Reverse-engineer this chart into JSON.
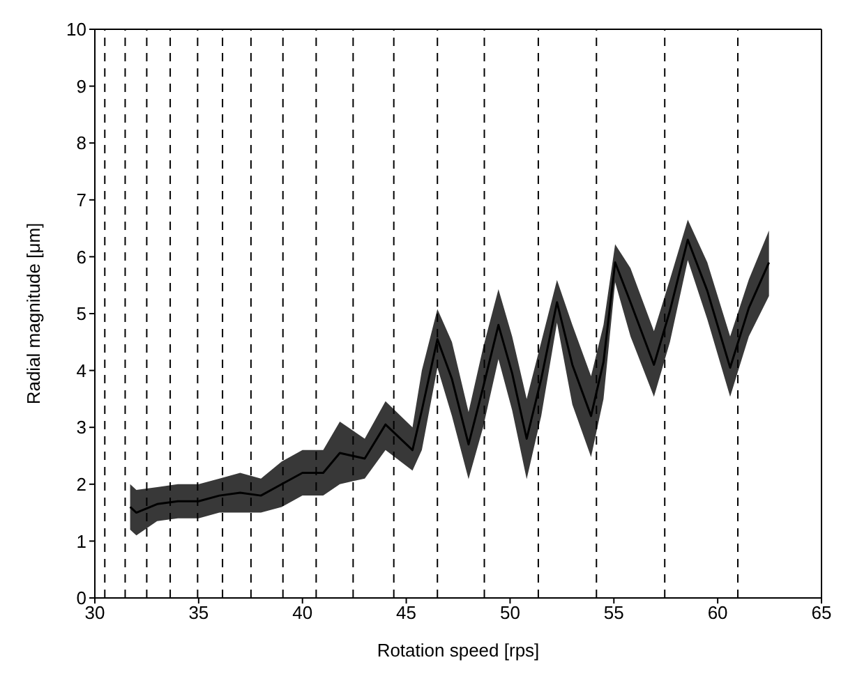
{
  "chart_data": {
    "type": "line",
    "xlabel": "Rotation speed [rps]",
    "ylabel": "Radial magnitude [μm]",
    "xlim": [
      30,
      65
    ],
    "xticks": [
      30,
      35,
      40,
      45,
      50,
      55,
      60,
      65
    ],
    "ylim": [
      0,
      10
    ],
    "yticks": [
      0,
      1,
      2,
      3,
      4,
      5,
      6,
      7,
      8,
      9,
      10
    ],
    "x": [
      31.7,
      32.0,
      33,
      34,
      35,
      36,
      37,
      38,
      39,
      40,
      41,
      41.8,
      43,
      44,
      45.3,
      45.75,
      46.5,
      47.2,
      48.0,
      48.7,
      49.44,
      50.1,
      50.8,
      51.5,
      52.26,
      53.0,
      53.9,
      54.5,
      55.06,
      55.8,
      56.93,
      57.7,
      58.56,
      59.5,
      60.6,
      61.5,
      62.47
    ],
    "series": [
      {
        "color": "#000000",
        "values": [
          1.6,
          1.5,
          1.65,
          1.7,
          1.7,
          1.8,
          1.85,
          1.8,
          2.0,
          2.2,
          2.2,
          2.55,
          2.45,
          3.05,
          2.6,
          3.3,
          4.55,
          3.85,
          2.7,
          3.7,
          4.8,
          3.95,
          2.8,
          3.85,
          5.2,
          4.1,
          3.2,
          4.15,
          5.9,
          5.2,
          4.1,
          5.05,
          6.3,
          5.4,
          4.05,
          5.1,
          5.9
        ],
        "lower": [
          1.2,
          1.1,
          1.35,
          1.4,
          1.4,
          1.5,
          1.5,
          1.5,
          1.6,
          1.8,
          1.8,
          2.0,
          2.1,
          2.6,
          2.24,
          2.6,
          4.05,
          3.2,
          2.09,
          3.0,
          4.2,
          3.3,
          2.09,
          3.2,
          4.84,
          3.4,
          2.48,
          3.5,
          5.55,
          4.6,
          3.54,
          4.5,
          5.94,
          4.9,
          3.54,
          4.6,
          5.31
        ],
        "upper": [
          2.0,
          1.9,
          1.95,
          2.0,
          2.0,
          2.1,
          2.2,
          2.1,
          2.4,
          2.6,
          2.6,
          3.1,
          2.8,
          3.46,
          3.0,
          4.0,
          5.08,
          4.5,
          3.27,
          4.4,
          5.43,
          4.6,
          3.5,
          4.5,
          5.59,
          4.8,
          3.9,
          4.8,
          6.22,
          5.8,
          4.69,
          5.6,
          6.65,
          5.9,
          4.6,
          5.6,
          6.46
        ]
      }
    ],
    "ref_lines": [
      {
        "axis": "x",
        "value": 30.48,
        "color": "#000000",
        "line_style": "dashed"
      },
      {
        "axis": "x",
        "value": 31.46,
        "color": "#000000",
        "line_style": "dashed"
      },
      {
        "axis": "x",
        "value": 32.5,
        "color": "#000000",
        "line_style": "dashed"
      },
      {
        "axis": "x",
        "value": 33.63,
        "color": "#000000",
        "line_style": "dashed"
      },
      {
        "axis": "x",
        "value": 34.95,
        "color": "#000000",
        "line_style": "dashed"
      },
      {
        "axis": "x",
        "value": 36.15,
        "color": "#000000",
        "line_style": "dashed"
      },
      {
        "axis": "x",
        "value": 37.52,
        "color": "#000000",
        "line_style": "dashed"
      },
      {
        "axis": "x",
        "value": 39.06,
        "color": "#000000",
        "line_style": "dashed"
      },
      {
        "axis": "x",
        "value": 40.66,
        "color": "#000000",
        "line_style": "dashed"
      },
      {
        "axis": "x",
        "value": 42.44,
        "color": "#000000",
        "line_style": "dashed"
      },
      {
        "axis": "x",
        "value": 44.4,
        "color": "#000000",
        "line_style": "dashed"
      },
      {
        "axis": "x",
        "value": 46.5,
        "color": "#000000",
        "line_style": "dashed"
      },
      {
        "axis": "x",
        "value": 48.76,
        "color": "#000000",
        "line_style": "dashed"
      },
      {
        "axis": "x",
        "value": 51.36,
        "color": "#000000",
        "line_style": "dashed"
      },
      {
        "axis": "x",
        "value": 54.16,
        "color": "#000000",
        "line_style": "dashed"
      },
      {
        "axis": "x",
        "value": 57.45,
        "color": "#000000",
        "line_style": "dashed"
      },
      {
        "axis": "x",
        "value": 60.97,
        "color": "#000000",
        "line_style": "dashed"
      }
    ],
    "grid": false,
    "legend": false,
    "marker": "none",
    "line_style": "solid"
  }
}
